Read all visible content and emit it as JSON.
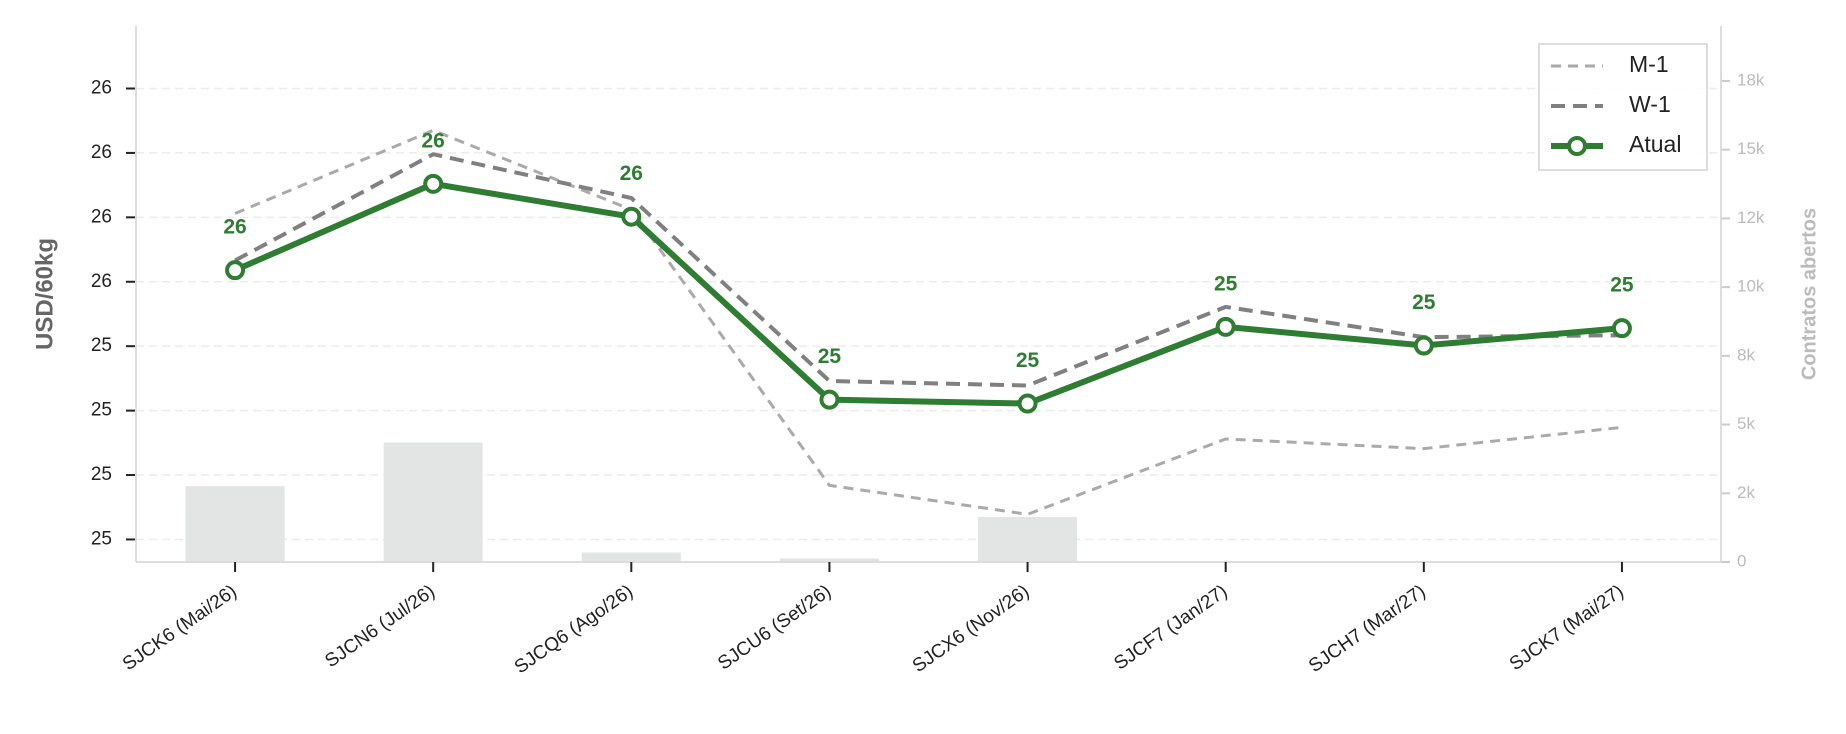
{
  "chart_data": {
    "type": "line",
    "categories": [
      "SJCK6 (Mai/26)",
      "SJCN6 (Jul/26)",
      "SJCQ6 (Ago/26)",
      "SJCU6 (Set/26)",
      "SJCX6 (Nov/26)",
      "SJCF7 (Jan/27)",
      "SJCH7 (Mar/27)",
      "SJCK7 (Mai/27)"
    ],
    "ylabel": "USD/60kg",
    "y2label": "Contratos abertos",
    "ylim": [
      25.115,
      25.947
    ],
    "yticks": [
      {
        "value": 25.15,
        "label": "25"
      },
      {
        "value": 25.25,
        "label": "25"
      },
      {
        "value": 25.35,
        "label": "25"
      },
      {
        "value": 25.45,
        "label": "25"
      },
      {
        "value": 25.55,
        "label": "26"
      },
      {
        "value": 25.65,
        "label": "26"
      },
      {
        "value": 25.75,
        "label": "26"
      },
      {
        "value": 25.85,
        "label": "26"
      }
    ],
    "y2lim": [
      0,
      19500
    ],
    "y2ticks": [
      {
        "value": 0,
        "label": "0"
      },
      {
        "value": 2500,
        "label": "2k"
      },
      {
        "value": 5000,
        "label": "5k"
      },
      {
        "value": 7500,
        "label": "8k"
      },
      {
        "value": 10000,
        "label": "10k"
      },
      {
        "value": 12500,
        "label": "12k"
      },
      {
        "value": 15000,
        "label": "15k"
      },
      {
        "value": 17500,
        "label": "18k"
      }
    ],
    "grid": true,
    "legend": "upper right",
    "bars": {
      "axis": "y2",
      "color": "#e3e5e4",
      "values": [
        2759,
        4353,
        345,
        130,
        1638,
        0,
        0,
        0
      ]
    },
    "series": [
      {
        "name": "M-1",
        "color": "#aaaaaa",
        "style": "dashed",
        "values": [
          25.656,
          25.785,
          25.662,
          25.234,
          25.189,
          25.306,
          25.291,
          25.324
        ]
      },
      {
        "name": "W-1",
        "color": "#808080",
        "style": "dashed",
        "values": [
          25.583,
          25.748,
          25.68,
          25.396,
          25.389,
          25.511,
          25.464,
          25.467
        ]
      },
      {
        "name": "Atual",
        "color": "#2e7d32",
        "style": "solid",
        "marker": true,
        "values": [
          25.568,
          25.702,
          25.651,
          25.367,
          25.361,
          25.48,
          25.451,
          25.478
        ],
        "value_labels": [
          "26",
          "26",
          "26",
          "25",
          "25",
          "25",
          "25",
          "25"
        ]
      }
    ]
  }
}
